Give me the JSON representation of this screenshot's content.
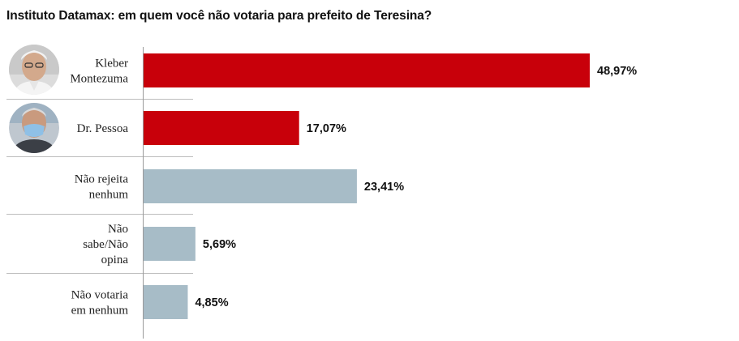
{
  "chart_data": {
    "type": "bar",
    "orientation": "horizontal",
    "title": "Instituto Datamax: em quem você não votaria para prefeito de Teresina?",
    "categories": [
      [
        "Kleber",
        "Montezuma"
      ],
      [
        "Dr. Pessoa"
      ],
      [
        "Não rejeita",
        "nenhum"
      ],
      [
        "Não",
        "sabe/Não",
        "opina"
      ],
      [
        "Não votaria",
        "em nenhum"
      ]
    ],
    "values": [
      48.97,
      17.07,
      23.41,
      5.69,
      4.85
    ],
    "value_labels": [
      "48,97%",
      "17,07%",
      "23,41%",
      "5,69%",
      "4,85%"
    ],
    "bar_colors": [
      "#c8000a",
      "#c8000a",
      "#a7bcc7",
      "#a7bcc7",
      "#a7bcc7"
    ],
    "avatars": [
      "kleber-montezuma-avatar",
      "dr-pessoa-avatar",
      null,
      null,
      null
    ],
    "xlim": [
      0,
      50
    ],
    "grid": false,
    "legend": "none"
  }
}
